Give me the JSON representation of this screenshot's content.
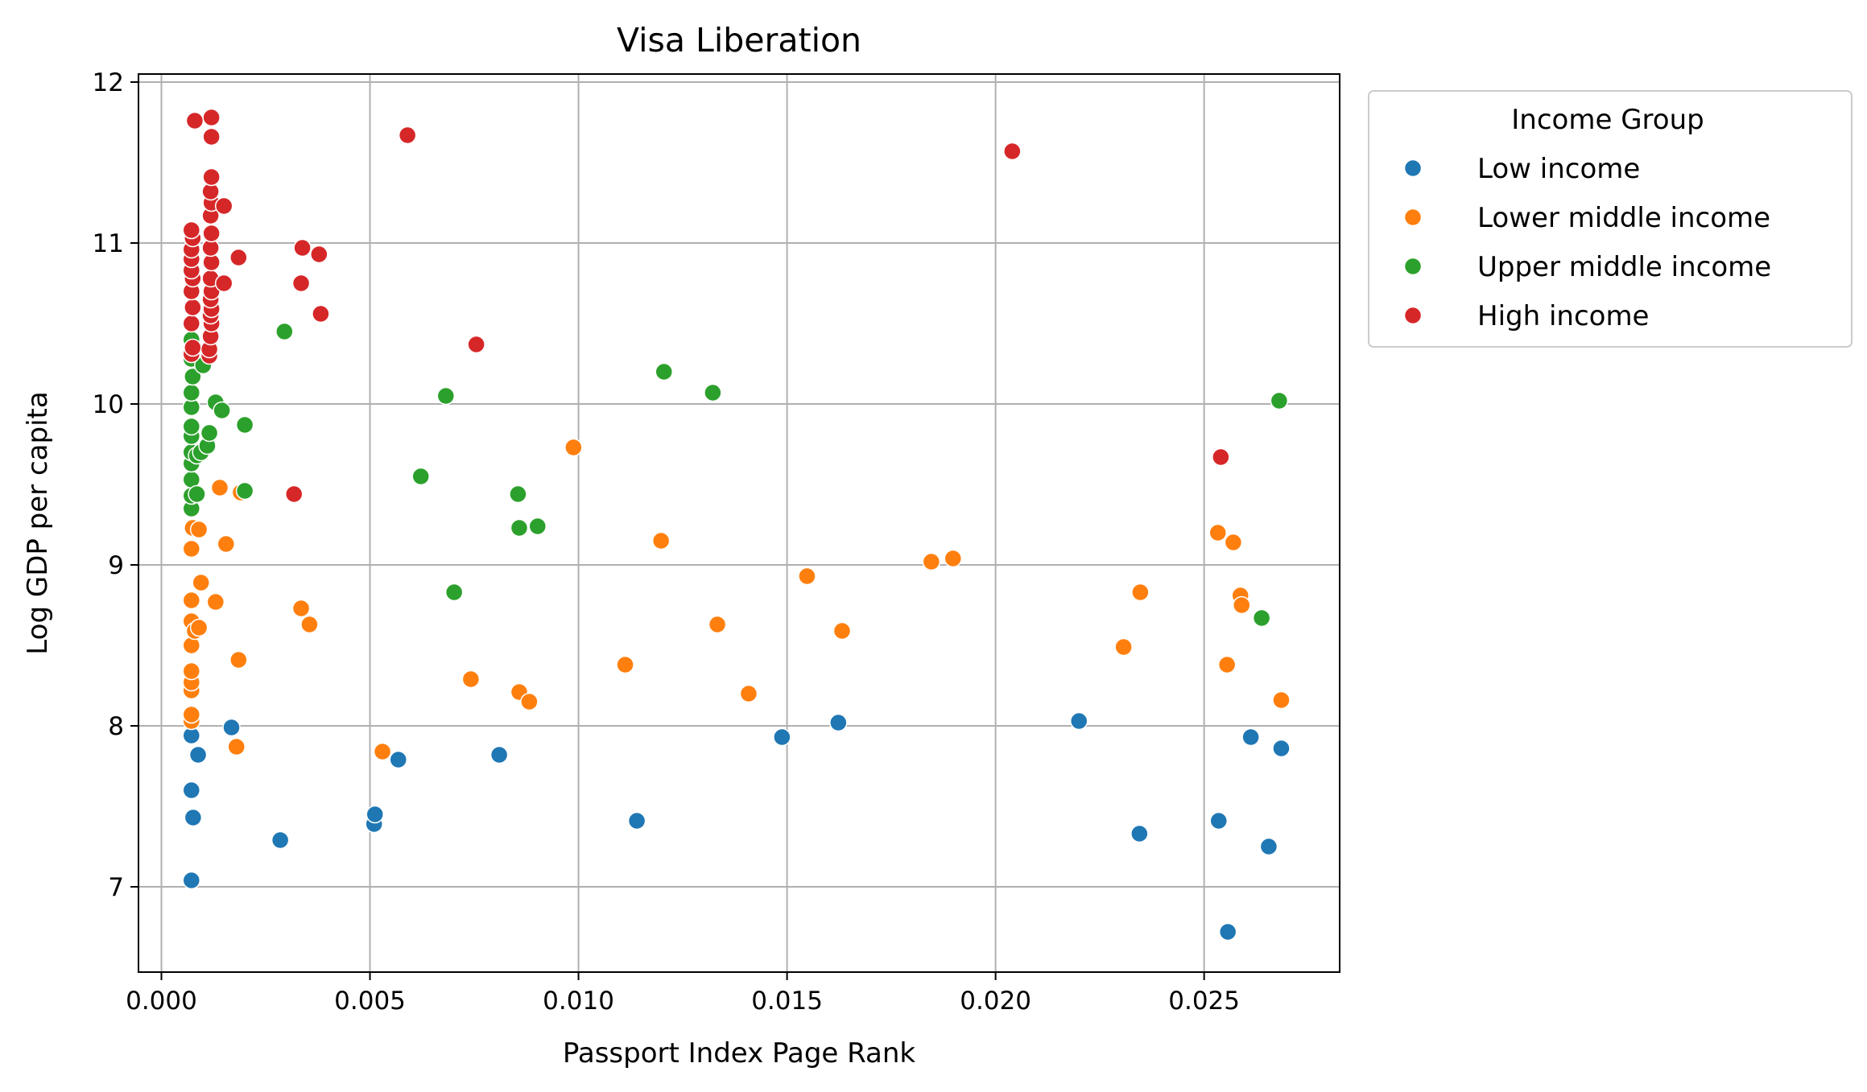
{
  "chart_data": {
    "type": "scatter",
    "title": "Visa Liberation",
    "xlabel": "Passport Index Page Rank",
    "ylabel": "Log GDP per capita",
    "xlim": [
      -0.00055,
      0.02825
    ],
    "ylim": [
      6.47,
      12.05
    ],
    "xticks": [
      0.0,
      0.005,
      0.01,
      0.015,
      0.02,
      0.025
    ],
    "xtick_labels": [
      "0.000",
      "0.005",
      "0.010",
      "0.015",
      "0.020",
      "0.025"
    ],
    "yticks": [
      7,
      8,
      9,
      10,
      11,
      12
    ],
    "ytick_labels": [
      "7",
      "8",
      "9",
      "10",
      "11",
      "12"
    ],
    "grid": true,
    "legend": {
      "title": "Income Group",
      "placement": "outside-top-right"
    },
    "series": [
      {
        "name": "Low income",
        "color": "#1f77b4",
        "points": [
          [
            0.00072,
            7.04
          ],
          [
            0.00076,
            7.43
          ],
          [
            0.00072,
            7.6
          ],
          [
            0.00072,
            7.94
          ],
          [
            0.00088,
            7.82
          ],
          [
            0.00168,
            7.99
          ],
          [
            0.00285,
            7.29
          ],
          [
            0.0051,
            7.39
          ],
          [
            0.00512,
            7.45
          ],
          [
            0.00568,
            7.79
          ],
          [
            0.0081,
            7.82
          ],
          [
            0.0114,
            7.41
          ],
          [
            0.01488,
            7.93
          ],
          [
            0.01623,
            8.02
          ],
          [
            0.022,
            8.03
          ],
          [
            0.02345,
            7.33
          ],
          [
            0.02535,
            7.41
          ],
          [
            0.02557,
            6.72
          ],
          [
            0.02612,
            7.93
          ],
          [
            0.02655,
            7.25
          ],
          [
            0.02685,
            7.86
          ]
        ]
      },
      {
        "name": "Lower middle income",
        "color": "#ff7f0e",
        "points": [
          [
            0.00072,
            8.03
          ],
          [
            0.00072,
            8.07
          ],
          [
            0.00072,
            8.22
          ],
          [
            0.00072,
            8.27
          ],
          [
            0.00072,
            8.34
          ],
          [
            0.00072,
            8.5
          ],
          [
            0.00072,
            8.65
          ],
          [
            0.00072,
            8.78
          ],
          [
            0.0008,
            8.59
          ],
          [
            0.0009,
            8.61
          ],
          [
            0.00095,
            8.89
          ],
          [
            0.00072,
            9.1
          ],
          [
            0.00075,
            9.23
          ],
          [
            0.0009,
            9.22
          ],
          [
            0.0013,
            8.77
          ],
          [
            0.0014,
            9.48
          ],
          [
            0.00155,
            9.13
          ],
          [
            0.0018,
            7.87
          ],
          [
            0.00185,
            8.41
          ],
          [
            0.0019,
            9.45
          ],
          [
            0.00335,
            8.73
          ],
          [
            0.00355,
            8.63
          ],
          [
            0.0053,
            7.84
          ],
          [
            0.00742,
            8.29
          ],
          [
            0.00858,
            8.21
          ],
          [
            0.00882,
            8.15
          ],
          [
            0.00988,
            9.73
          ],
          [
            0.01112,
            8.38
          ],
          [
            0.01198,
            9.15
          ],
          [
            0.01333,
            8.63
          ],
          [
            0.01408,
            8.2
          ],
          [
            0.01548,
            8.93
          ],
          [
            0.01632,
            8.59
          ],
          [
            0.01846,
            9.02
          ],
          [
            0.01898,
            9.04
          ],
          [
            0.02307,
            8.49
          ],
          [
            0.02347,
            8.83
          ],
          [
            0.02533,
            9.2
          ],
          [
            0.02555,
            8.38
          ],
          [
            0.0257,
            9.14
          ],
          [
            0.02587,
            8.81
          ],
          [
            0.0259,
            8.75
          ],
          [
            0.02685,
            8.16
          ]
        ]
      },
      {
        "name": "Upper middle income",
        "color": "#2ca02c",
        "points": [
          [
            0.00072,
            9.35
          ],
          [
            0.00072,
            9.43
          ],
          [
            0.00072,
            9.53
          ],
          [
            0.00072,
            9.63
          ],
          [
            0.00072,
            9.7
          ],
          [
            0.00072,
            9.8
          ],
          [
            0.00072,
            9.86
          ],
          [
            0.00072,
            9.98
          ],
          [
            0.00072,
            10.07
          ],
          [
            0.00075,
            10.17
          ],
          [
            0.00072,
            10.28
          ],
          [
            0.00072,
            10.4
          ],
          [
            0.00085,
            9.44
          ],
          [
            0.00085,
            9.68
          ],
          [
            0.00095,
            9.7
          ],
          [
            0.001,
            10.24
          ],
          [
            0.0011,
            9.74
          ],
          [
            0.00115,
            9.82
          ],
          [
            0.0013,
            10.01
          ],
          [
            0.00145,
            9.96
          ],
          [
            0.002,
            9.46
          ],
          [
            0.002,
            9.87
          ],
          [
            0.00295,
            10.45
          ],
          [
            0.00622,
            9.55
          ],
          [
            0.00682,
            10.05
          ],
          [
            0.00702,
            8.83
          ],
          [
            0.00855,
            9.44
          ],
          [
            0.00858,
            9.23
          ],
          [
            0.00902,
            9.24
          ],
          [
            0.01205,
            10.2
          ],
          [
            0.01322,
            10.07
          ],
          [
            0.02638,
            8.67
          ],
          [
            0.0268,
            10.02
          ]
        ]
      },
      {
        "name": "High income",
        "color": "#d62728",
        "points": [
          [
            0.00072,
            10.31
          ],
          [
            0.00075,
            10.35
          ],
          [
            0.00072,
            10.5
          ],
          [
            0.00075,
            10.6
          ],
          [
            0.00072,
            10.7
          ],
          [
            0.00075,
            10.78
          ],
          [
            0.00072,
            10.83
          ],
          [
            0.00072,
            10.9
          ],
          [
            0.00072,
            10.96
          ],
          [
            0.00075,
            11.03
          ],
          [
            0.00072,
            11.08
          ],
          [
            0.0008,
            11.76
          ],
          [
            0.00115,
            10.3
          ],
          [
            0.00115,
            10.34
          ],
          [
            0.00118,
            10.42
          ],
          [
            0.0012,
            10.5
          ],
          [
            0.00118,
            10.55
          ],
          [
            0.0012,
            10.59
          ],
          [
            0.00118,
            10.65
          ],
          [
            0.0012,
            10.7
          ],
          [
            0.00118,
            10.78
          ],
          [
            0.0012,
            10.88
          ],
          [
            0.00118,
            10.97
          ],
          [
            0.0012,
            11.06
          ],
          [
            0.00118,
            11.17
          ],
          [
            0.0012,
            11.25
          ],
          [
            0.00118,
            11.32
          ],
          [
            0.0012,
            11.41
          ],
          [
            0.0012,
            11.66
          ],
          [
            0.0012,
            11.78
          ],
          [
            0.0015,
            11.23
          ],
          [
            0.0015,
            10.75
          ],
          [
            0.00185,
            10.91
          ],
          [
            0.00318,
            9.44
          ],
          [
            0.00335,
            10.75
          ],
          [
            0.00338,
            10.97
          ],
          [
            0.00378,
            10.93
          ],
          [
            0.00382,
            10.56
          ],
          [
            0.0059,
            11.67
          ],
          [
            0.00755,
            10.37
          ],
          [
            0.0204,
            11.57
          ],
          [
            0.0254,
            9.67
          ]
        ]
      }
    ]
  }
}
